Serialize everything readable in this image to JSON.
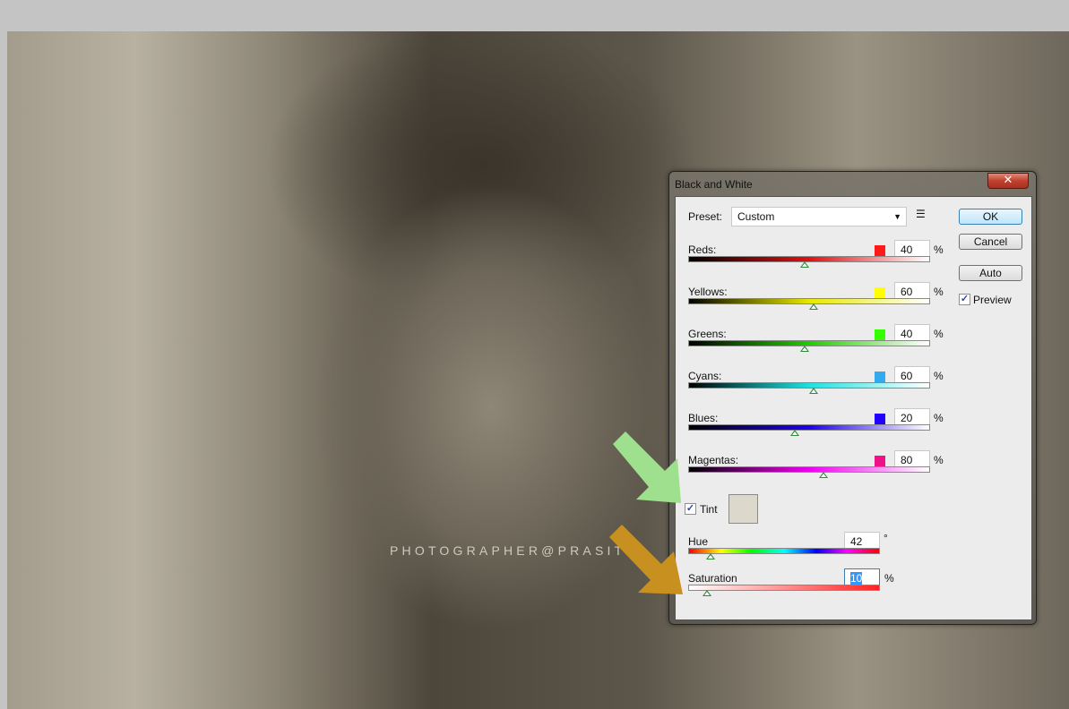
{
  "watermark": "PHOTOGRAPHER@PRASITT",
  "dialog": {
    "title": "Black and White",
    "close_label": "✕",
    "preset_label": "Preset:",
    "preset_value": "Custom",
    "buttons": {
      "ok": "OK",
      "cancel": "Cancel",
      "auto": "Auto"
    },
    "preview": {
      "label": "Preview",
      "checked": true
    },
    "slider_range": [
      -200,
      300
    ],
    "channels": [
      {
        "label": "Reds:",
        "value": "40",
        "unit": "%",
        "color": "#ff1a1a",
        "gradient": [
          "#000000",
          "#e01010",
          "#ffffff"
        ]
      },
      {
        "label": "Yellows:",
        "value": "60",
        "unit": "%",
        "color": "#ffff00",
        "gradient": [
          "#000000",
          "#e8e800",
          "#ffffff"
        ]
      },
      {
        "label": "Greens:",
        "value": "40",
        "unit": "%",
        "color": "#33ff00",
        "gradient": [
          "#000000",
          "#22cc00",
          "#ffffff"
        ]
      },
      {
        "label": "Cyans:",
        "value": "60",
        "unit": "%",
        "color": "#33aaee",
        "gradient": [
          "#000000",
          "#20e0e0",
          "#ffffff"
        ]
      },
      {
        "label": "Blues:",
        "value": "20",
        "unit": "%",
        "color": "#2200ff",
        "gradient": [
          "#000000",
          "#2000ee",
          "#ffffff"
        ]
      },
      {
        "label": "Magentas:",
        "value": "80",
        "unit": "%",
        "color": "#ee1188",
        "gradient": [
          "#000000",
          "#ee00ee",
          "#ffffff"
        ]
      }
    ],
    "tint": {
      "label": "Tint",
      "checked": true,
      "swatch": "#ddd8cc"
    },
    "hue": {
      "label": "Hue",
      "value": "42",
      "unit": "°",
      "max": 360
    },
    "saturation": {
      "label": "Saturation",
      "value": "10",
      "unit": "%",
      "max": 100
    }
  },
  "arrows": {
    "green": "#9ee08e",
    "orange": "#c8901e"
  }
}
